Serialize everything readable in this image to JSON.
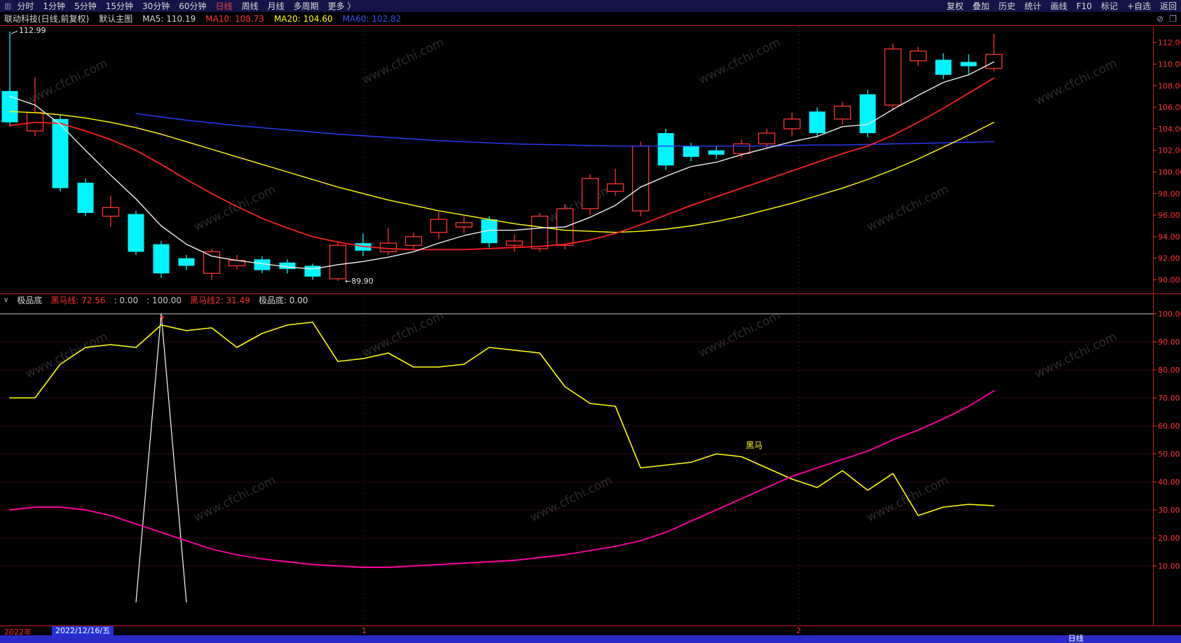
{
  "menubar": {
    "left_items": [
      {
        "label": "分时",
        "active": false
      },
      {
        "label": "1分钟",
        "active": false
      },
      {
        "label": "5分钟",
        "active": false
      },
      {
        "label": "15分钟",
        "active": false
      },
      {
        "label": "30分钟",
        "active": false
      },
      {
        "label": "60分钟",
        "active": false
      },
      {
        "label": "日线",
        "active": true
      },
      {
        "label": "周线",
        "active": false
      },
      {
        "label": "月线",
        "active": false
      },
      {
        "label": "多周期",
        "active": false
      },
      {
        "label": "更多 〉",
        "active": false
      }
    ],
    "right_items": [
      "复权",
      "叠加",
      "历史",
      "统计",
      "画线",
      "F10",
      "标记",
      "+自选",
      "返回"
    ]
  },
  "infobar": {
    "title": "联动科技(日线,前复权)",
    "subtitle": "默认主图",
    "ma_labels": [
      {
        "text": "MA5: 110.19",
        "color": "#d8d8d8"
      },
      {
        "text": "MA10: 108.73",
        "color": "#ff3232"
      },
      {
        "text": "MA20: 104.60",
        "color": "#ffff00"
      },
      {
        "text": "MA60: 102.82",
        "color": "#3a52ff"
      }
    ],
    "icons": [
      {
        "name": "no-draw-icon",
        "glyph": "⊘"
      },
      {
        "name": "window-icon",
        "glyph": "❐"
      }
    ]
  },
  "indicator_header": {
    "collapse_glyph": "∨",
    "items": [
      {
        "text": "极品底",
        "color": "#d8d8d8"
      },
      {
        "text": "黑马线: 72.56",
        "color": "#ff3232"
      },
      {
        "text": ": 0.00",
        "color": "#c8c8c8"
      },
      {
        "text": ": 100.00",
        "color": "#c8c8c8"
      },
      {
        "text": "黑马线2: 31.49",
        "color": "#ff3232"
      },
      {
        "text": "极品底: 0.00",
        "color": "#d8d8d8"
      }
    ]
  },
  "footer": {
    "year": "2022年",
    "date": "2022/12/16/五",
    "marker1": "1",
    "marker2": "2",
    "period": "日线"
  },
  "watermark": "www.cfchi.com",
  "chart_data": {
    "type": "candlestick",
    "main": {
      "ylim": [
        88.8,
        113.6
      ],
      "yticks": [
        112,
        110,
        108,
        106,
        104,
        102,
        100,
        98,
        96,
        94,
        92,
        90
      ],
      "up_color": "#ff3232",
      "down_color": "#00f6ff",
      "high_annotation": {
        "text": "112.99",
        "bar": 0
      },
      "low_annotation": {
        "text": "←89.90",
        "bar": 13
      },
      "candles": [
        [
          107.5,
          113.0,
          104.2,
          104.6
        ],
        [
          103.8,
          108.8,
          103.3,
          105.5
        ],
        [
          104.9,
          105.3,
          98.2,
          98.5
        ],
        [
          99.0,
          99.4,
          95.9,
          96.2
        ],
        [
          95.9,
          97.8,
          94.9,
          96.7
        ],
        [
          96.1,
          96.4,
          92.3,
          92.6
        ],
        [
          93.3,
          93.6,
          90.2,
          90.6
        ],
        [
          92.0,
          92.3,
          90.9,
          91.3
        ],
        [
          90.6,
          92.9,
          90.0,
          92.6
        ],
        [
          91.3,
          92.3,
          91.0,
          91.8
        ],
        [
          91.9,
          92.2,
          90.6,
          90.9
        ],
        [
          91.6,
          91.9,
          90.6,
          91.0
        ],
        [
          91.3,
          91.5,
          90.0,
          90.3
        ],
        [
          90.1,
          93.6,
          89.9,
          93.2
        ],
        [
          93.4,
          94.3,
          92.2,
          92.7
        ],
        [
          92.6,
          94.8,
          92.3,
          93.4
        ],
        [
          93.2,
          94.4,
          92.8,
          94.0
        ],
        [
          94.4,
          96.3,
          93.8,
          95.6
        ],
        [
          94.9,
          95.9,
          94.3,
          95.3
        ],
        [
          95.6,
          95.9,
          93.0,
          93.4
        ],
        [
          93.2,
          94.2,
          92.6,
          93.6
        ],
        [
          92.9,
          96.2,
          92.6,
          95.9
        ],
        [
          93.2,
          97.0,
          92.8,
          96.6
        ],
        [
          96.6,
          99.8,
          96.0,
          99.4
        ],
        [
          98.2,
          100.3,
          97.8,
          98.9
        ],
        [
          96.4,
          102.8,
          95.9,
          102.4
        ],
        [
          103.6,
          104.0,
          100.2,
          100.6
        ],
        [
          102.4,
          102.7,
          101.0,
          101.4
        ],
        [
          102.0,
          102.4,
          101.2,
          101.6
        ],
        [
          101.7,
          103.0,
          101.3,
          102.6
        ],
        [
          102.6,
          104.0,
          102.2,
          103.6
        ],
        [
          104.0,
          105.5,
          103.3,
          104.9
        ],
        [
          105.6,
          106.0,
          103.2,
          103.6
        ],
        [
          104.9,
          106.5,
          104.4,
          106.1
        ],
        [
          107.2,
          107.6,
          103.2,
          103.6
        ],
        [
          106.2,
          111.9,
          105.8,
          111.4
        ],
        [
          110.3,
          111.6,
          109.8,
          111.2
        ],
        [
          110.4,
          111.0,
          108.6,
          109.0
        ],
        [
          110.2,
          110.9,
          109.1,
          109.8
        ],
        [
          109.6,
          112.8,
          109.3,
          110.9
        ]
      ],
      "overlays": [
        {
          "name": "MA60",
          "color": "#2a3cff",
          "width": 1.4,
          "values": [
            null,
            null,
            null,
            null,
            null,
            105.4,
            105.1,
            104.8,
            104.55,
            104.3,
            104.1,
            103.9,
            103.7,
            103.5,
            103.35,
            103.2,
            103.05,
            102.9,
            102.8,
            102.7,
            102.6,
            102.55,
            102.5,
            102.45,
            102.4,
            102.4,
            102.4,
            102.4,
            102.4,
            102.4,
            102.4,
            102.45,
            102.5,
            102.5,
            102.55,
            102.6,
            102.65,
            102.7,
            102.75,
            102.8
          ]
        },
        {
          "name": "MA20",
          "color": "#ffff00",
          "width": 1.4,
          "values": [
            105.6,
            105.5,
            105.3,
            105.0,
            104.6,
            104.1,
            103.5,
            102.8,
            102.1,
            101.4,
            100.7,
            100.0,
            99.3,
            98.6,
            98.0,
            97.4,
            96.9,
            96.4,
            96.0,
            95.6,
            95.2,
            94.9,
            94.6,
            94.5,
            94.4,
            94.5,
            94.7,
            95.0,
            95.4,
            95.9,
            96.5,
            97.1,
            97.8,
            98.5,
            99.3,
            100.2,
            101.2,
            102.3,
            103.4,
            104.6
          ]
        },
        {
          "name": "MA10",
          "color": "#ff2020",
          "width": 1.8,
          "values": [
            104.3,
            104.6,
            104.5,
            103.8,
            103.0,
            102.0,
            100.7,
            99.3,
            98.0,
            96.8,
            95.7,
            94.8,
            94.0,
            93.5,
            93.1,
            92.9,
            92.8,
            92.8,
            92.8,
            92.9,
            93.0,
            93.1,
            93.3,
            93.7,
            94.3,
            95.1,
            96.0,
            96.9,
            97.7,
            98.5,
            99.3,
            100.1,
            100.9,
            101.7,
            102.4,
            103.4,
            104.6,
            105.9,
            107.3,
            108.7
          ]
        },
        {
          "name": "MA5",
          "color": "#eeeeee",
          "width": 1.4,
          "values": [
            107.0,
            106.2,
            104.4,
            102.0,
            99.7,
            97.5,
            95.0,
            93.3,
            92.2,
            91.8,
            91.5,
            91.2,
            91.0,
            91.4,
            91.7,
            92.1,
            92.6,
            93.4,
            94.1,
            94.6,
            94.6,
            94.8,
            94.9,
            95.8,
            96.9,
            98.6,
            99.6,
            100.5,
            100.9,
            101.6,
            102.2,
            102.8,
            103.3,
            104.2,
            104.4,
            105.8,
            107.1,
            108.3,
            109.0,
            110.2
          ]
        }
      ]
    },
    "indicator": {
      "name": "极品底",
      "ylim": [
        0,
        100
      ],
      "yticks": [
        100,
        90,
        80,
        70,
        60,
        50,
        40,
        30,
        20,
        10
      ],
      "series": [
        {
          "name": "spike",
          "color": "#ffffff",
          "width": 1.2,
          "points": [
            [
              5,
              -3
            ],
            [
              6,
              100
            ],
            [
              7,
              -3
            ]
          ]
        },
        {
          "name": "黑马线2",
          "color": "#ffff00",
          "width": 1.6,
          "values": [
            70,
            70,
            82,
            88,
            89,
            88,
            96,
            94,
            95,
            88,
            93,
            96,
            97,
            83,
            84,
            86,
            81,
            81,
            82,
            88,
            87,
            86,
            74,
            68,
            67,
            45,
            46,
            47,
            50,
            49,
            45,
            41,
            38,
            44,
            37,
            43,
            28,
            31,
            32,
            31.5
          ]
        },
        {
          "name": "黑马线",
          "color": "#ff00a0",
          "width": 1.9,
          "values": [
            30,
            31,
            31,
            30,
            28,
            25,
            22,
            19,
            16,
            14,
            12.5,
            11.5,
            10.5,
            10,
            9.5,
            9.5,
            10,
            10.5,
            11,
            11.5,
            12,
            13,
            14,
            15.5,
            17,
            19,
            22,
            26,
            30,
            34,
            38,
            42,
            45,
            48,
            51,
            55,
            58.5,
            62.5,
            67,
            72.5
          ]
        }
      ],
      "signal": {
        "text": "黑马",
        "color": "#ffff00",
        "bar": 29,
        "value": 52
      },
      "arrow": {
        "glyph": "↑",
        "color": "#ff3232",
        "bar": 6
      }
    },
    "axis_color": "#ff3232",
    "frame_color": "#c02020",
    "month_marker_bars_x": [
      520,
      1140
    ]
  }
}
